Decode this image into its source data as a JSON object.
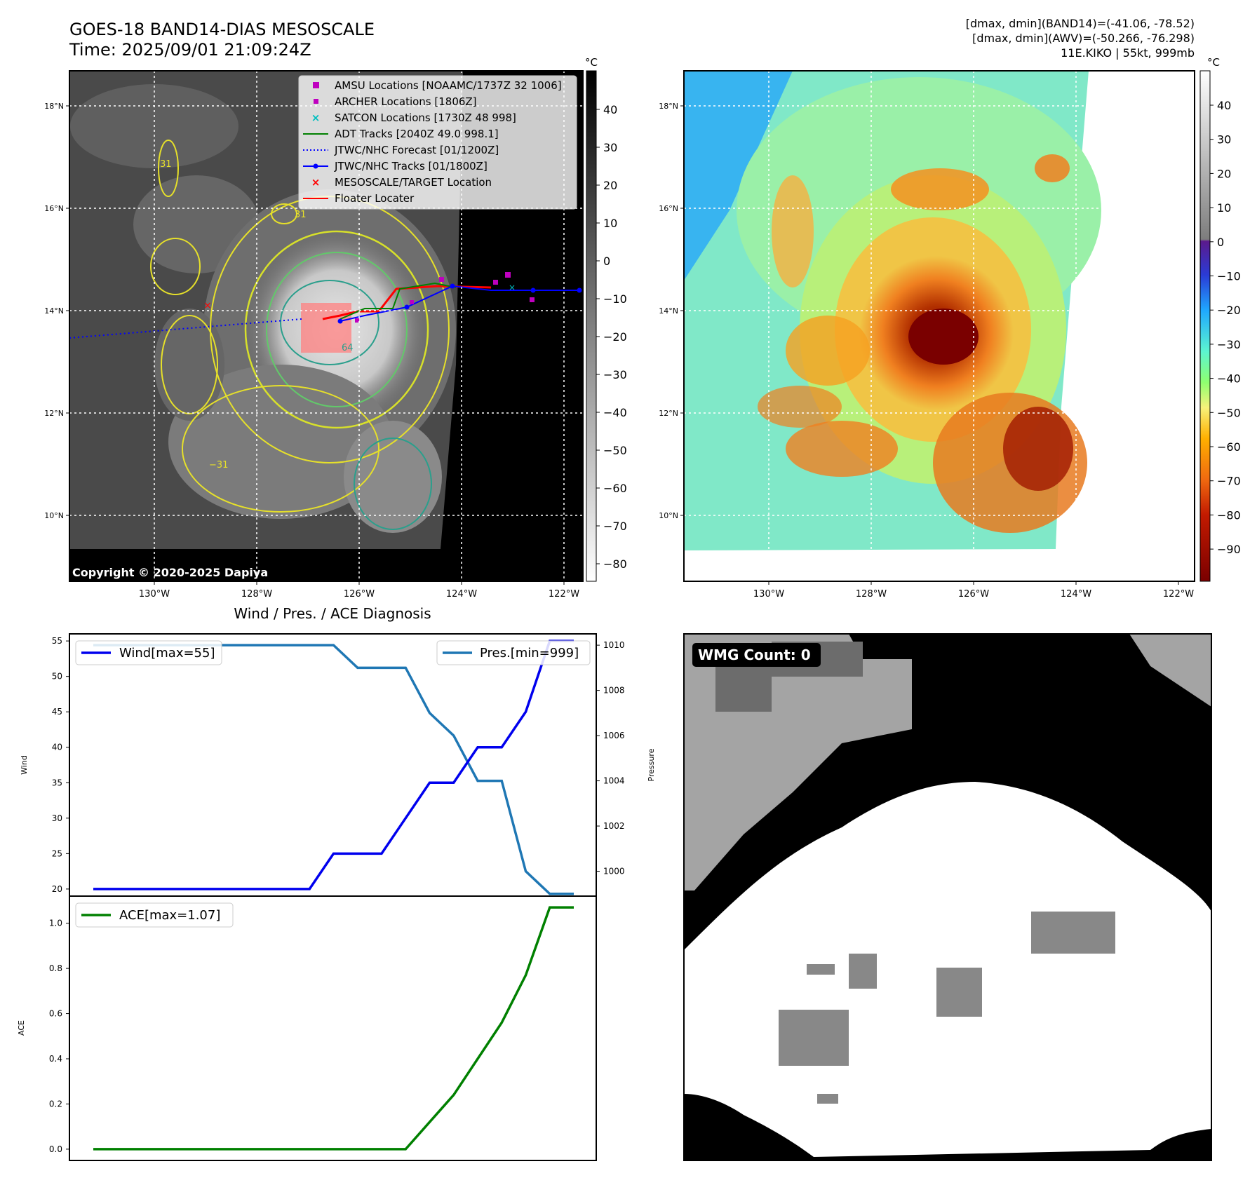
{
  "header": {
    "title_line1": "GOES-18 BAND14-DIAS MESOSCALE",
    "title_line2": "Time: 2025/09/01 21:09:24Z",
    "info_line1": "[dmax, dmin](BAND14)=(-41.06, -78.52)",
    "info_line2": "[dmax, dmin](AWV)=(-50.266, -76.298)",
    "info_line3": "11E.KIKO | 55kt, 999mb"
  },
  "map_axes": {
    "lon_ticks": [
      "130°W",
      "128°W",
      "126°W",
      "124°W",
      "122°W"
    ],
    "lat_ticks": [
      "18°N",
      "16°N",
      "14°N",
      "12°N",
      "10°N"
    ]
  },
  "ir_panel": {
    "colorbar_unit": "°C",
    "colorbar_ticks": [
      "40",
      "30",
      "20",
      "10",
      "0",
      "−10",
      "−20",
      "−30",
      "−40",
      "−50",
      "−60",
      "−70",
      "−80"
    ],
    "copyright": "Copyright © 2020-2025 Dapiya",
    "contour_labels": [
      "31",
      "−31",
      "64",
      "31"
    ],
    "legend": [
      {
        "label": "AMSU Locations [NOAAMC/1737Z 32 1006]",
        "color": "#bf00bf",
        "marker": "square"
      },
      {
        "label": "ARCHER Locations [1806Z]",
        "color": "#bf00bf",
        "marker": "square-small"
      },
      {
        "label": "SATCON Locations [1730Z 48 998]",
        "color": "#00bfbf",
        "marker": "x"
      },
      {
        "label": "ADT Tracks [2040Z 49.0 998.1]",
        "color": "#008000",
        "marker": "line"
      },
      {
        "label": "JTWC/NHC Forecast [01/1200Z]",
        "color": "#0000ff",
        "marker": "dotted"
      },
      {
        "label": "JTWC/NHC Tracks [01/1800Z]",
        "color": "#0000ff",
        "marker": "line-dot"
      },
      {
        "label": "MESOSCALE/TARGET Location",
        "color": "#ff0000",
        "marker": "x"
      },
      {
        "label": "Floater Locater",
        "color": "#ff0000",
        "marker": "line"
      }
    ]
  },
  "awv_panel": {
    "colorbar_unit": "°C",
    "colorbar_ticks": [
      "40",
      "30",
      "20",
      "10",
      "0",
      "−10",
      "−20",
      "−30",
      "−40",
      "−50",
      "−60",
      "−70",
      "−80",
      "−90"
    ]
  },
  "wmg_panel": {
    "badge": "WMG Count: 0"
  },
  "chart_data": [
    {
      "type": "line",
      "title": "Wind / Pres. / ACE Diagnosis",
      "x": [
        0,
        1,
        2,
        3,
        4,
        5,
        6,
        7,
        8,
        9,
        10,
        11,
        12,
        13,
        14,
        15,
        16,
        17,
        18,
        19,
        20
      ],
      "series": [
        {
          "name": "Wind[max=55]",
          "axis": "left",
          "color": "#0000ee",
          "values": [
            20,
            20,
            20,
            20,
            20,
            20,
            20,
            20,
            20,
            20,
            25,
            25,
            25,
            30,
            35,
            35,
            40,
            40,
            45,
            55,
            55
          ]
        },
        {
          "name": "Pres.[min=999]",
          "axis": "right",
          "color": "#1f77b4",
          "values": [
            1010,
            1010,
            1010,
            1010,
            1010,
            1010,
            1010,
            1010,
            1010,
            1010,
            1010,
            1009,
            1009,
            1009,
            1007,
            1006,
            1004,
            1004,
            1000,
            999,
            999
          ]
        }
      ],
      "ylabel": "Wind",
      "ylabel_right": "Pressure",
      "ylim": [
        19,
        56
      ],
      "ylim_right": [
        998.9,
        1010.5
      ],
      "yticks": [
        20,
        25,
        30,
        35,
        40,
        45,
        50,
        55
      ],
      "yticks_right": [
        1000,
        1002,
        1004,
        1006,
        1008,
        1010
      ],
      "legend": [
        "top-left",
        "top-right"
      ]
    },
    {
      "type": "line",
      "x": [
        0,
        1,
        2,
        3,
        4,
        5,
        6,
        7,
        8,
        9,
        10,
        11,
        12,
        13,
        14,
        15,
        16,
        17,
        18,
        19,
        20
      ],
      "series": [
        {
          "name": "ACE[max=1.07]",
          "color": "#008000",
          "values": [
            0,
            0,
            0,
            0,
            0,
            0,
            0,
            0,
            0,
            0,
            0,
            0,
            0,
            0,
            0.12,
            0.24,
            0.4,
            0.56,
            0.77,
            1.07,
            1.07
          ]
        }
      ],
      "ylabel": "ACE",
      "ylim": [
        -0.05,
        1.12
      ],
      "yticks": [
        0.0,
        0.2,
        0.4,
        0.6,
        0.8,
        1.0
      ],
      "ytick_labels": [
        "0.0",
        "0.2",
        "0.4",
        "0.6",
        "0.8",
        "1.0"
      ],
      "legend": "top-left"
    }
  ]
}
